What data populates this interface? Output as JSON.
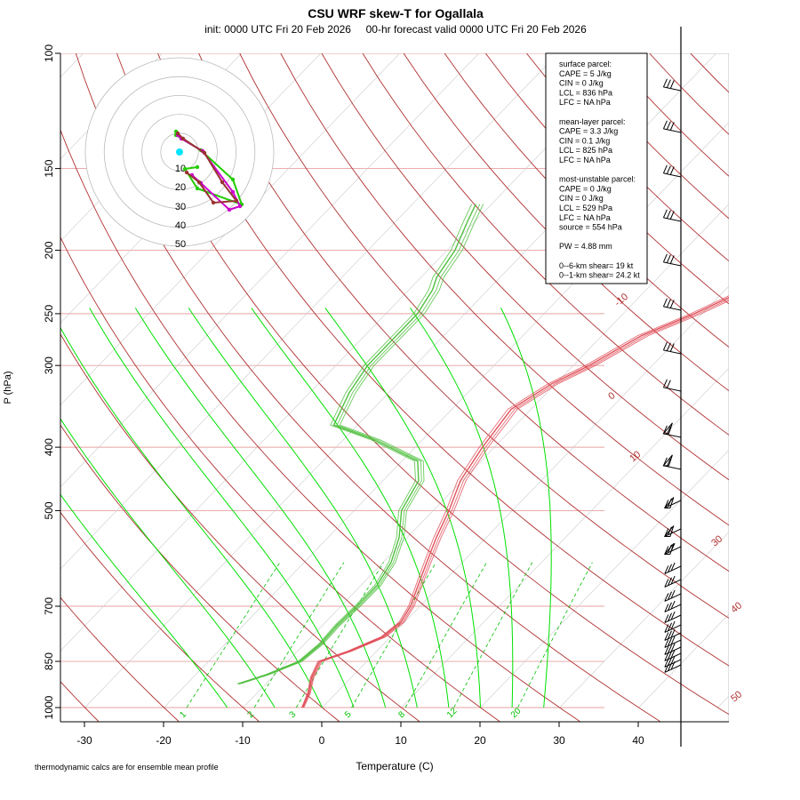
{
  "title": "CSU WRF skew-T for Ogallala",
  "subtitle": "init: 0000 UTC Fri 20 Feb 2026     00-hr forecast valid 0000 UTC Fri 20 Feb 2026",
  "footnote": "thermodynamic calcs are for ensemble mean profile",
  "colors": {
    "temperature": "#e0505a",
    "dewpoint": "#50c040",
    "isotherm": "#cccccc",
    "isobar": "#e8a0a0",
    "dry_adiabat": "#b03030",
    "moist_adiabat": "#00e000",
    "mixing_ratio": "#00c000",
    "hodo_ring": "#bbbbbb",
    "hodo_green": "#22cc00",
    "hodo_magenta": "#cc00cc",
    "hodo_darkred": "#993333",
    "storm_motion": "#00e5ff"
  },
  "info_box": {
    "lines": [
      "surface parcel:",
      "CAPE = 5 J/kg",
      "CIN = 0 J/kg",
      "LCL = 836 hPa",
      "LFC = NA hPa",
      "",
      "mean-layer parcel:",
      "CAPE = 3.3 J/kg",
      "CIN = 0.1 J/kg",
      "LCL = 825 hPa",
      "LFC = NA hPa",
      "",
      "most-unstable parcel:",
      "CAPE = 0 J/kg",
      "CIN = 0 J/kg",
      "LCL = 529 hPa",
      "LFC = NA hPa",
      "source = 554 hPa",
      "",
      "PW =  4.88 mm",
      "",
      "0--6-km shear= 19 kt",
      "0--1-km shear= 24.2 kt"
    ]
  },
  "chart_data": {
    "type": "line",
    "xlabel": "Temperature (C)",
    "ylabel": "P (hPa)",
    "x_ticks": [
      -30,
      -20,
      -10,
      0,
      10,
      20,
      30,
      40
    ],
    "y_ticks": [
      100,
      150,
      200,
      250,
      300,
      400,
      500,
      700,
      850,
      1000
    ],
    "log_pressure_axis": true,
    "xlim": [
      -33,
      43
    ],
    "ylim": [
      1000,
      100
    ],
    "isotherm_labels": [
      -10,
      0,
      10,
      30,
      40,
      50
    ],
    "mixing_ratio_labels": [
      "1",
      "2",
      "3",
      "5",
      "8",
      "12",
      "20"
    ],
    "series": [
      {
        "kind": "temperature",
        "points": [
          [
            1000,
            -2.5
          ],
          [
            950,
            -3.5
          ],
          [
            900,
            -5
          ],
          [
            850,
            -6
          ],
          [
            820,
            -3.5
          ],
          [
            780,
            -1
          ],
          [
            740,
            -0.5
          ],
          [
            700,
            -1.2
          ],
          [
            650,
            -2.8
          ],
          [
            600,
            -4.5
          ],
          [
            550,
            -6.3
          ],
          [
            500,
            -8
          ],
          [
            450,
            -10.2
          ],
          [
            400,
            -11.5
          ],
          [
            350,
            -12.5
          ],
          [
            320,
            -10.5
          ],
          [
            300,
            -8
          ],
          [
            270,
            -5
          ],
          [
            250,
            -1
          ],
          [
            230,
            2.5
          ],
          [
            200,
            6.5
          ],
          [
            170,
            10.5
          ],
          [
            150,
            14
          ],
          [
            130,
            17
          ],
          [
            115,
            19.5
          ],
          [
            105,
            20.5
          ]
        ]
      },
      {
        "kind": "dewpoint",
        "points": [
          [
            920,
            -13.5
          ],
          [
            890,
            -11
          ],
          [
            850,
            -8.5
          ],
          [
            800,
            -8
          ],
          [
            750,
            -8.2
          ],
          [
            700,
            -8
          ],
          [
            650,
            -8
          ],
          [
            600,
            -9
          ],
          [
            550,
            -11
          ],
          [
            500,
            -14
          ],
          [
            450,
            -15.5
          ],
          [
            420,
            -18
          ],
          [
            390,
            -26
          ],
          [
            370,
            -33
          ],
          [
            330,
            -35
          ],
          [
            300,
            -36
          ],
          [
            270,
            -36
          ],
          [
            250,
            -36
          ],
          [
            230,
            -37
          ],
          [
            220,
            -38
          ],
          [
            200,
            -39
          ],
          [
            180,
            -41
          ],
          [
            170,
            -42
          ]
        ]
      }
    ],
    "hodograph": {
      "rings_kt": [
        10,
        20,
        30,
        40,
        50
      ],
      "labels": [
        "10",
        "20",
        "30",
        "40",
        "50"
      ]
    }
  }
}
